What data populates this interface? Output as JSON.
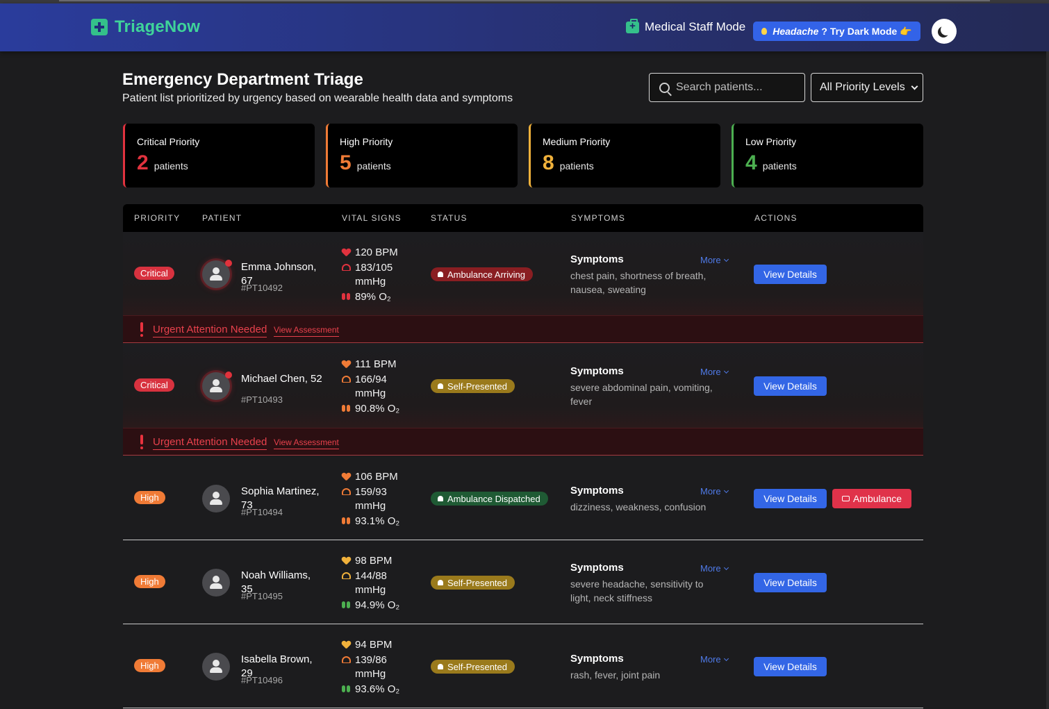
{
  "header": {
    "logo": "TriageNow",
    "staff_mode": "Medical Staff Mode",
    "dark_tip_a": "Headache",
    "dark_tip_b": "? Try Dark Mode",
    "dark_tip_emoji": "👉"
  },
  "page": {
    "title": "Emergency Department Triage",
    "subtitle": "Patient list prioritized by urgency based on wearable health data and symptoms",
    "search_placeholder": "Search patients...",
    "priority_filter": "All Priority Levels"
  },
  "cards": [
    {
      "title": "Critical Priority",
      "count": "2",
      "label": "patients",
      "color": "#e0323e"
    },
    {
      "title": "High Priority",
      "count": "5",
      "label": "patients",
      "color": "#f07b36"
    },
    {
      "title": "Medium Priority",
      "count": "8",
      "label": "patients",
      "color": "#f0b13b"
    },
    {
      "title": "Low Priority",
      "count": "4",
      "label": "patients",
      "color": "#4caf50"
    }
  ],
  "table": {
    "headers": [
      "PRIORITY",
      "PATIENT",
      "VITAL SIGNS",
      "STATUS",
      "SYMPTOMS",
      "ACTIONS"
    ],
    "symptoms_heading": "Symptoms",
    "more_label": "More",
    "view_label": "View Details",
    "ambulance_label": "Ambulance",
    "urgent_text": "Urgent Attention Needed",
    "urgent_link": "View Assessment",
    "rows": [
      {
        "priority": "Critical",
        "name": "Emma Johnson, 67",
        "id": "#PT10492",
        "bpm": "120 BPM",
        "bp": "183/105 mmHg",
        "o2": "89% O₂",
        "status": "Ambulance Arriving",
        "symptoms": "chest pain, shortness of breath, nausea, sweating"
      },
      {
        "priority": "Critical",
        "name": "Michael Chen, 52",
        "id": "#PT10493",
        "bpm": "111 BPM",
        "bp": "166/94 mmHg",
        "o2": "90.8% O₂",
        "status": "Self-Presented",
        "symptoms": "severe abdominal pain, vomiting, fever"
      },
      {
        "priority": "High",
        "name": "Sophia Martinez, 73",
        "id": "#PT10494",
        "bpm": "106 BPM",
        "bp": "159/93 mmHg",
        "o2": "93.1% O₂",
        "status": "Ambulance Dispatched",
        "symptoms": "dizziness, weakness, confusion"
      },
      {
        "priority": "High",
        "name": "Noah Williams, 35",
        "id": "#PT10495",
        "bpm": "98 BPM",
        "bp": "144/88 mmHg",
        "o2": "94.9% O₂",
        "status": "Self-Presented",
        "symptoms": "severe headache, sensitivity to light, neck stiffness"
      },
      {
        "priority": "High",
        "name": "Isabella Brown, 29",
        "id": "#PT10496",
        "bpm": "94 BPM",
        "bp": "139/86 mmHg",
        "o2": "93.6% O₂",
        "status": "Self-Presented",
        "symptoms": "rash, fever, joint pain"
      }
    ]
  },
  "colors": {
    "critical": "#d8323f",
    "high": "#f07b36",
    "status_red": "#8a1e22",
    "status_amber": "#9a7a1c",
    "status_green": "#1f5a34",
    "primary": "#3366e6"
  }
}
